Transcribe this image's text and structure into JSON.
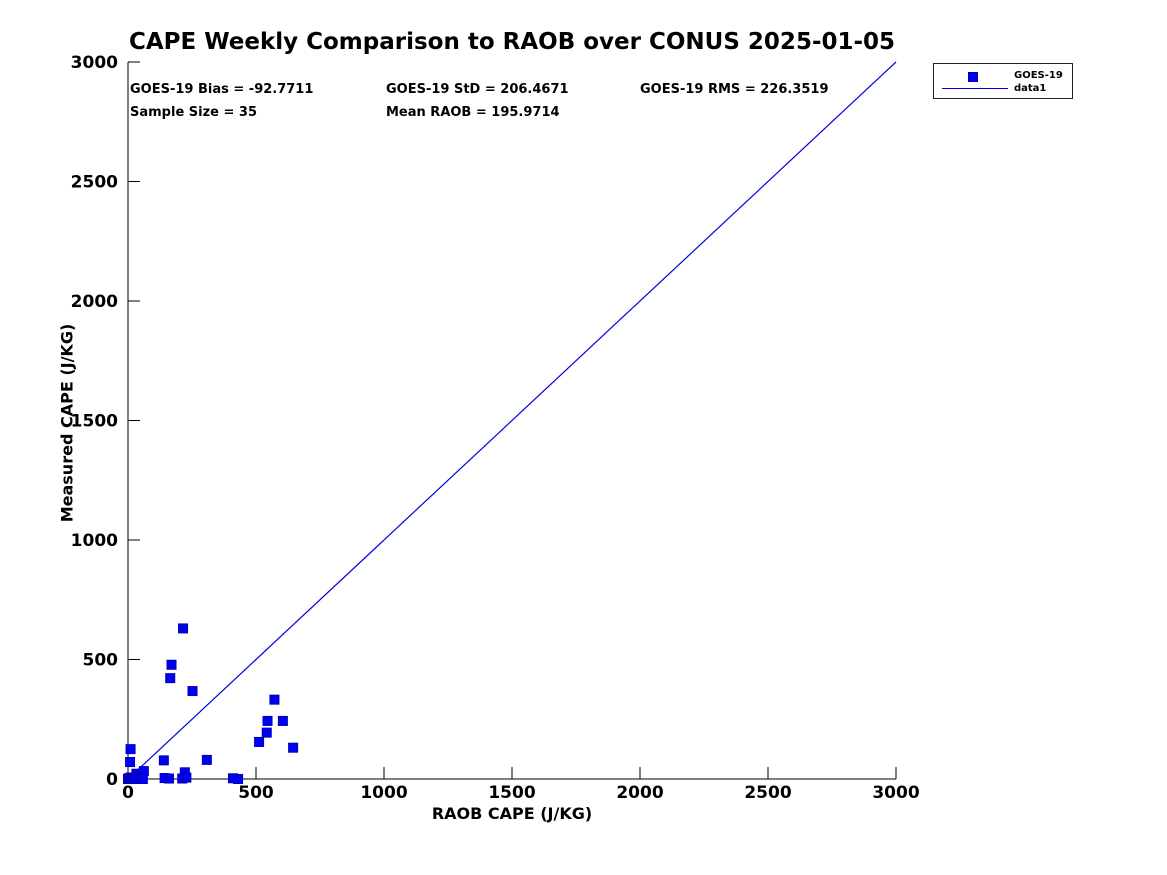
{
  "stats": {
    "bias": "GOES-19 Bias = -92.7711",
    "std": "GOES-19 StD = 206.4671",
    "rms": "GOES-19 RMS = 226.3519",
    "sample_size": "Sample Size = 35",
    "mean_raob": "Mean RAOB = 195.9714"
  },
  "colors": {
    "marker_fill": "#0000f5",
    "marker_edge": "#0000b4",
    "line_blue": "#0000dd",
    "axis_black": "#000000"
  },
  "chart_data": {
    "type": "scatter",
    "title": "CAPE Weekly Comparison to RAOB over CONUS 2025-01-05",
    "xlabel": "RAOB CAPE (J/KG)",
    "ylabel": "Measured CAPE (J/KG)",
    "xlim": [
      0,
      3000
    ],
    "ylim": [
      0,
      3000
    ],
    "xticks": [
      0,
      500,
      1000,
      1500,
      2000,
      2500,
      3000
    ],
    "yticks": [
      0,
      500,
      1000,
      1500,
      2000,
      2500,
      3000
    ],
    "grid": false,
    "legend_position": "top-right-outside",
    "series": [
      {
        "name": "GOES-19",
        "type": "scatter",
        "marker": "square",
        "color": "#0000f5",
        "points": [
          [
            215,
            630
          ],
          [
            170,
            478
          ],
          [
            165,
            422
          ],
          [
            252,
            368
          ],
          [
            572,
            332
          ],
          [
            545,
            243
          ],
          [
            605,
            243
          ],
          [
            542,
            194
          ],
          [
            512,
            155
          ],
          [
            645,
            131
          ],
          [
            10,
            125
          ],
          [
            8,
            71
          ],
          [
            140,
            78
          ],
          [
            308,
            80
          ],
          [
            62,
            33
          ],
          [
            33,
            22
          ],
          [
            222,
            28
          ],
          [
            143,
            4
          ],
          [
            160,
            2
          ],
          [
            212,
            2
          ],
          [
            228,
            6
          ],
          [
            410,
            3
          ],
          [
            430,
            0
          ],
          [
            0,
            0
          ],
          [
            3,
            3
          ],
          [
            6,
            0
          ],
          [
            10,
            6
          ],
          [
            14,
            0
          ],
          [
            18,
            2
          ],
          [
            22,
            6
          ],
          [
            28,
            0
          ],
          [
            34,
            3
          ],
          [
            42,
            0
          ],
          [
            50,
            2
          ],
          [
            58,
            0
          ]
        ]
      },
      {
        "name": "data1",
        "type": "line",
        "color": "#0000dd",
        "points": [
          [
            0,
            0
          ],
          [
            3000,
            3000
          ]
        ]
      }
    ]
  }
}
